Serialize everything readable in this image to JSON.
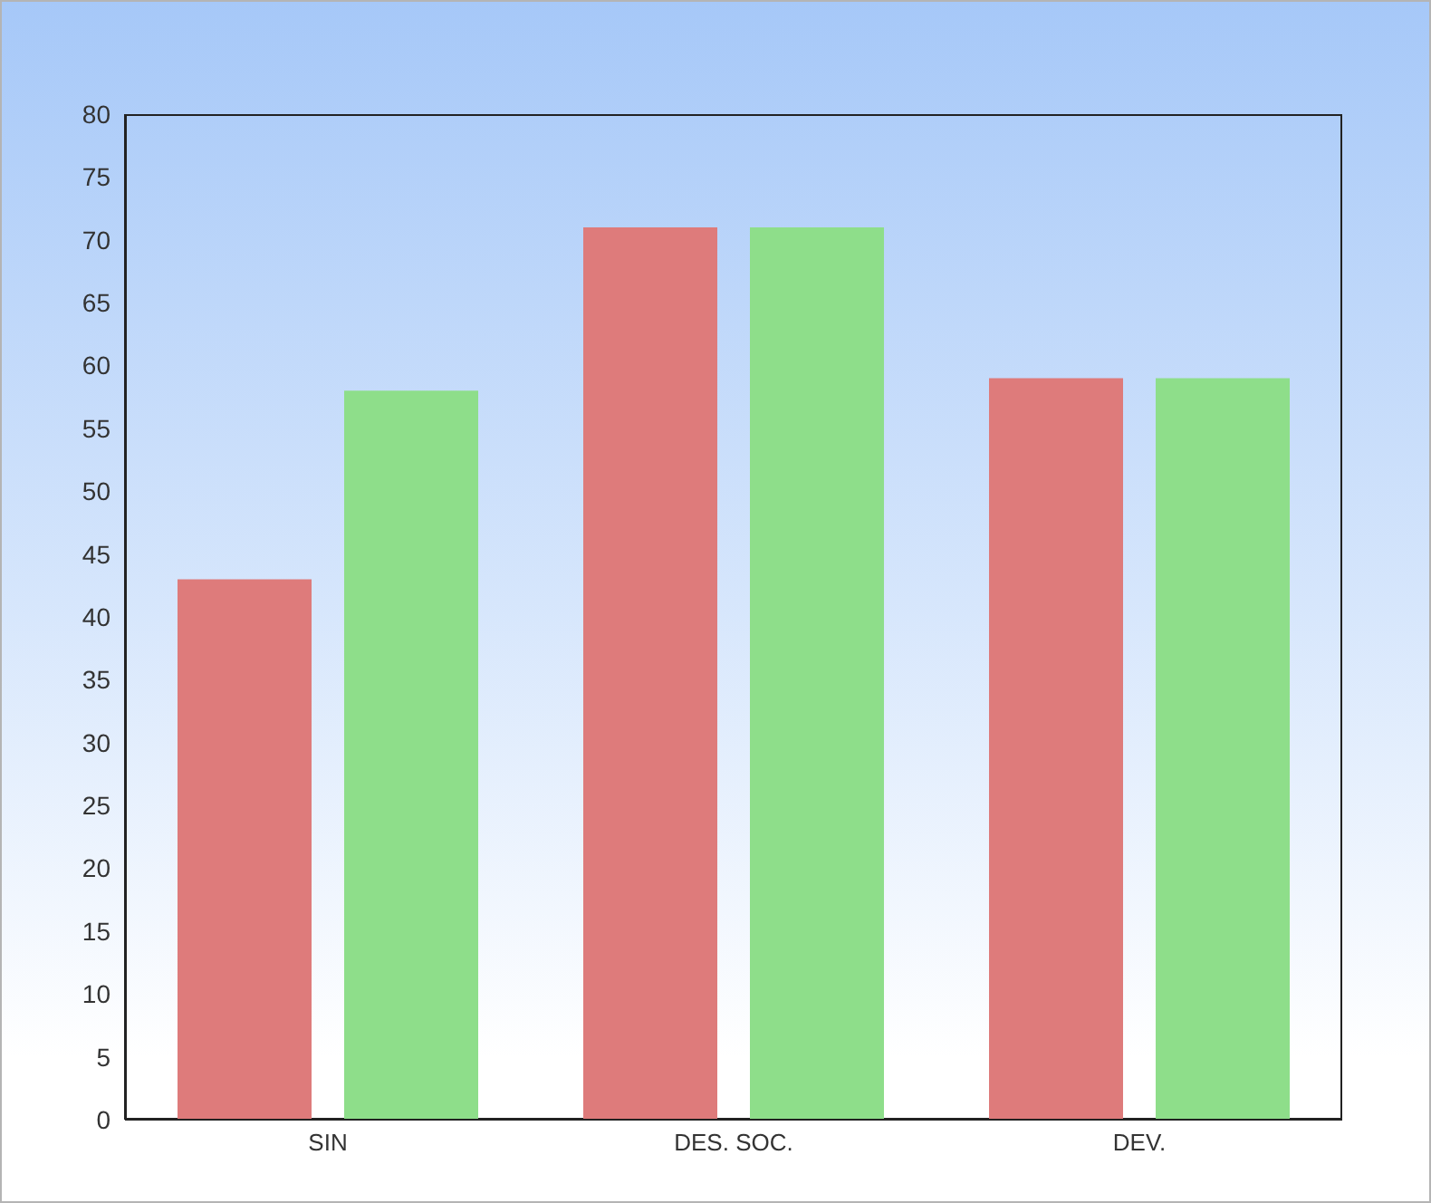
{
  "chart_data": {
    "type": "bar",
    "categories": [
      "SIN",
      "DES. SOC.",
      "DEV."
    ],
    "series": [
      {
        "color": "#de7b7b",
        "values": [
          43,
          71,
          59
        ]
      },
      {
        "color": "#8ede8a",
        "values": [
          58,
          71,
          59
        ]
      }
    ],
    "ylim": [
      0,
      80
    ],
    "yticks": [
      0,
      5,
      10,
      15,
      20,
      25,
      30,
      35,
      40,
      45,
      50,
      55,
      60,
      65,
      70,
      75,
      80
    ]
  }
}
